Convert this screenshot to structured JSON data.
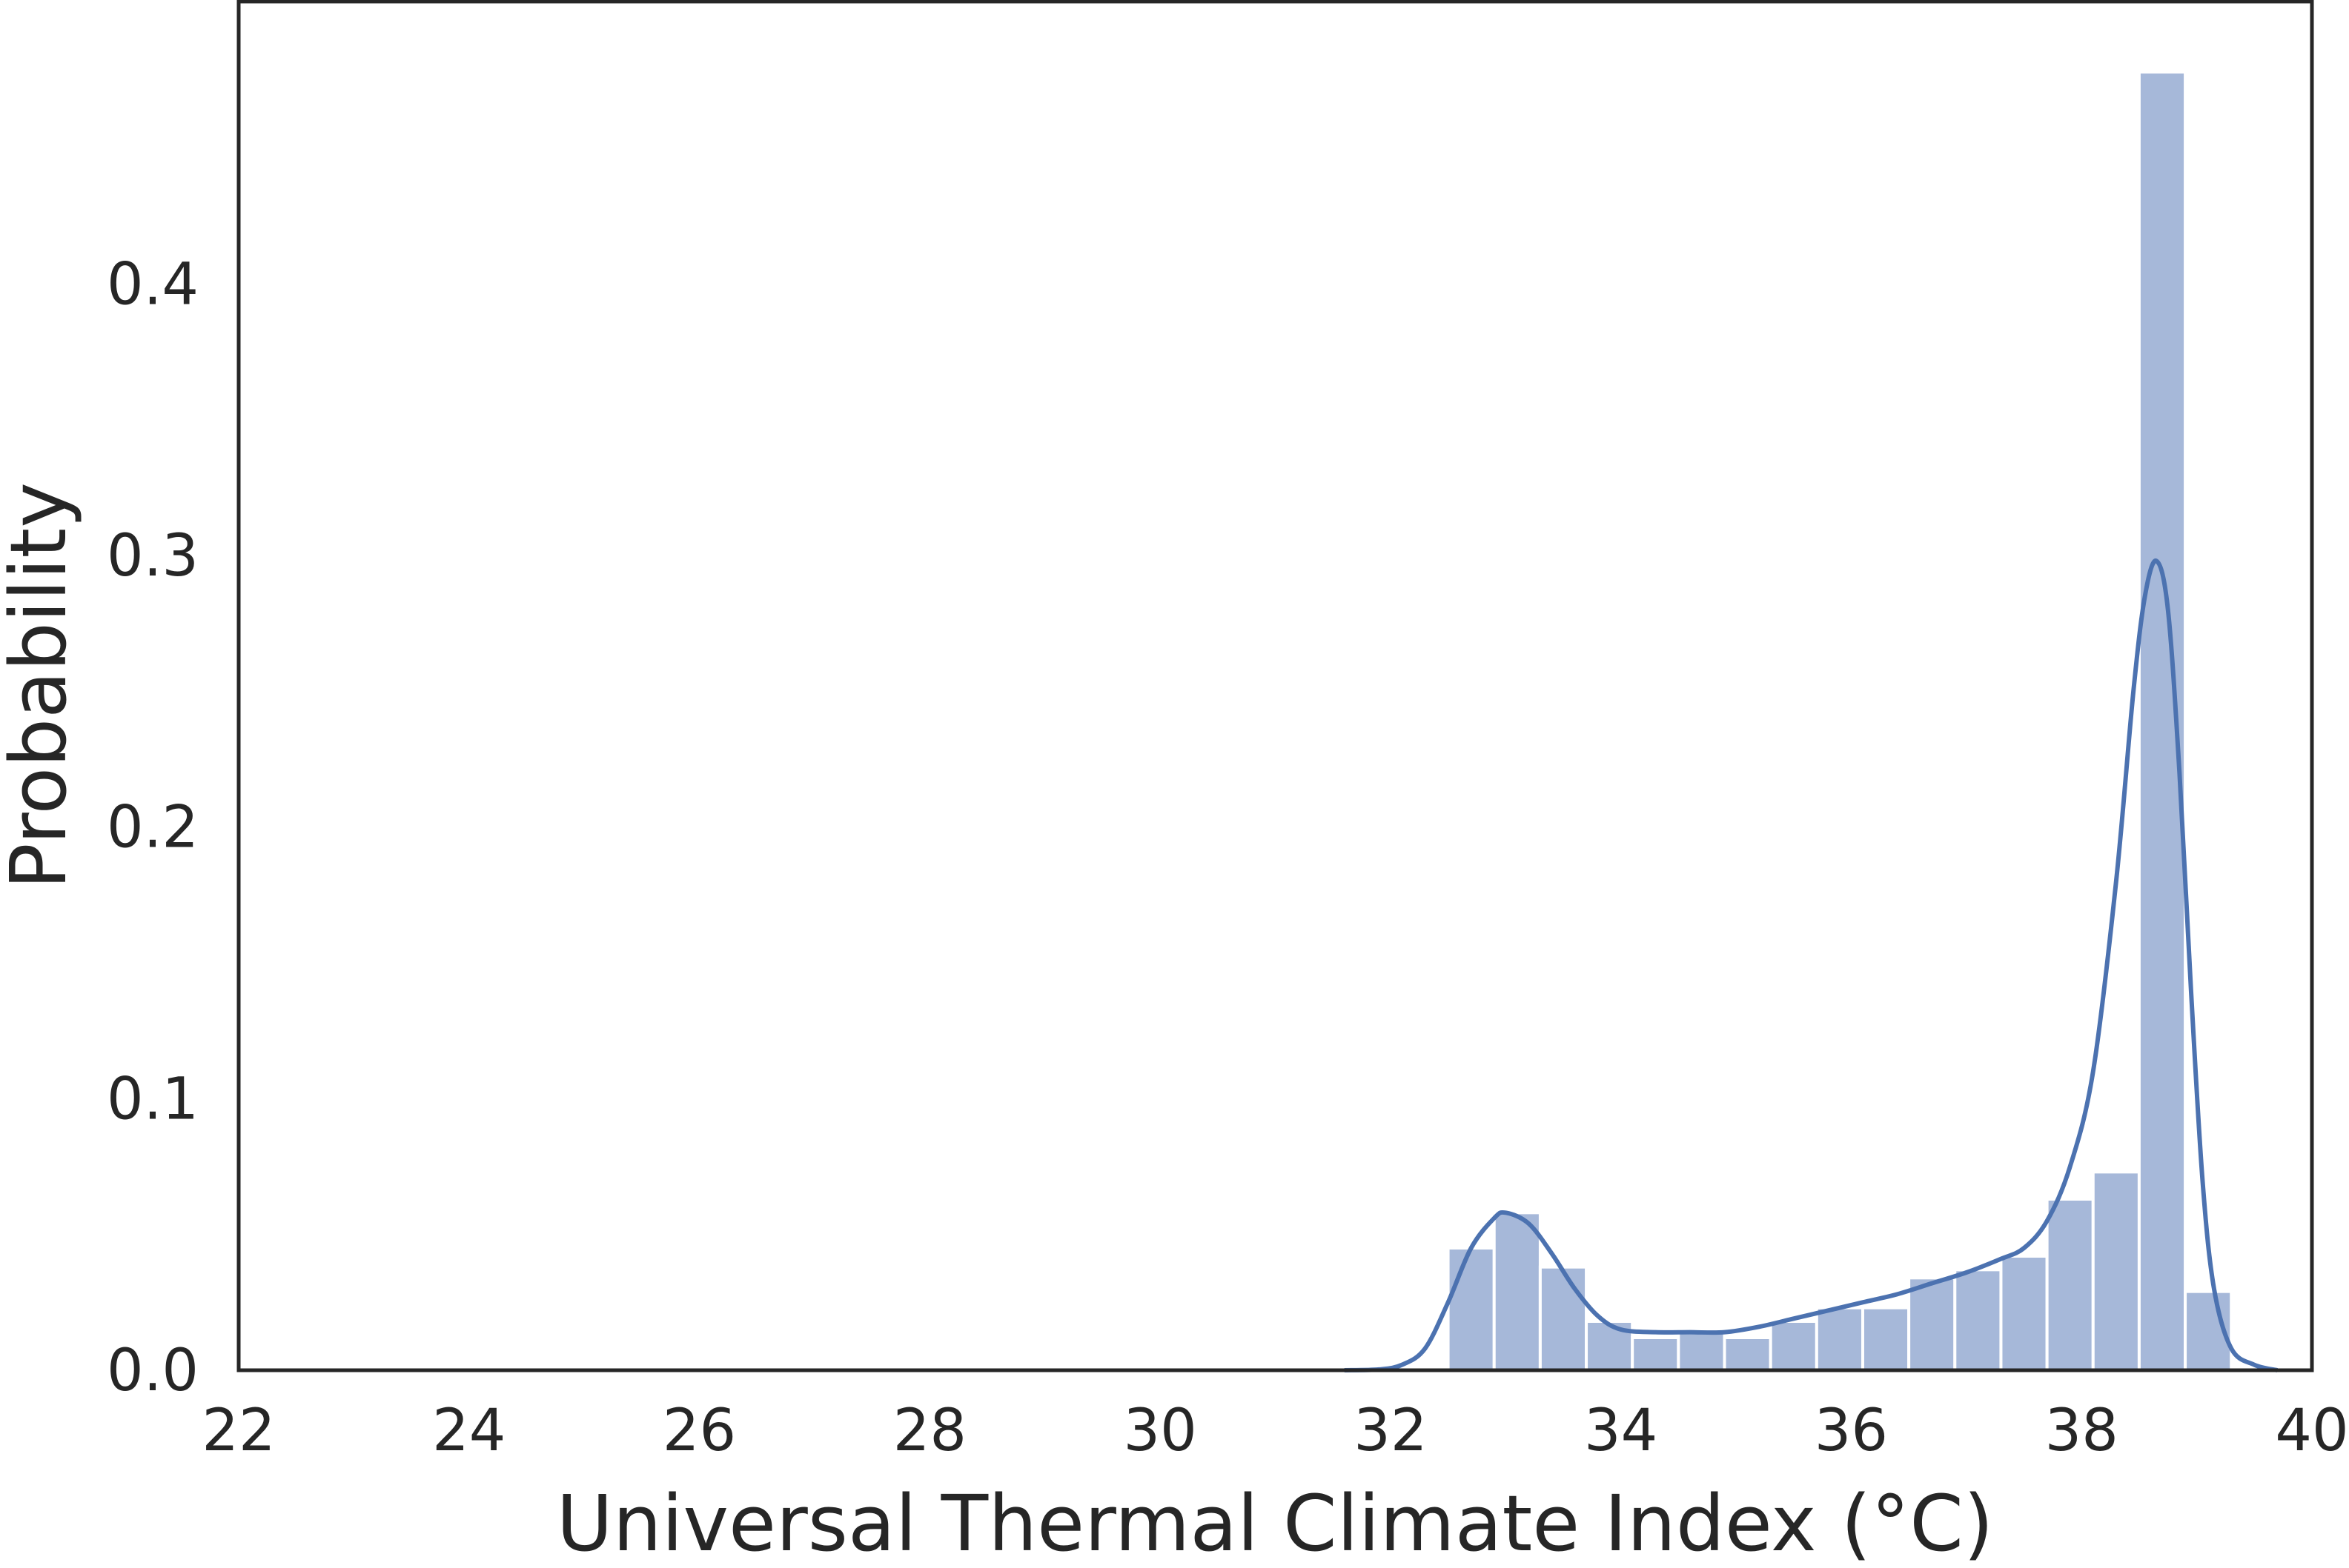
{
  "chart_data": {
    "type": "bar",
    "xlabel": "Universal Thermal Climate Index (°C)",
    "ylabel": "Probability",
    "xlim": [
      22,
      40
    ],
    "ylim": [
      0,
      0.48
    ],
    "x_ticks": [
      "22",
      "24",
      "26",
      "28",
      "30",
      "32",
      "34",
      "36",
      "38",
      "40"
    ],
    "y_ticks": [
      "0.0",
      "0.1",
      "0.2",
      "0.3",
      "0.4"
    ],
    "grid": false,
    "bar_color": "#a6b8d9",
    "kde_color": "#4c72b0",
    "bin_width": 0.4,
    "bins": [
      {
        "x0": 32.5,
        "value": 0.045
      },
      {
        "x0": 32.9,
        "value": 0.058
      },
      {
        "x0": 33.3,
        "value": 0.038
      },
      {
        "x0": 33.7,
        "value": 0.018
      },
      {
        "x0": 34.1,
        "value": 0.012
      },
      {
        "x0": 34.5,
        "value": 0.014
      },
      {
        "x0": 34.9,
        "value": 0.012
      },
      {
        "x0": 35.3,
        "value": 0.018
      },
      {
        "x0": 35.7,
        "value": 0.023
      },
      {
        "x0": 36.1,
        "value": 0.023
      },
      {
        "x0": 36.5,
        "value": 0.034
      },
      {
        "x0": 36.9,
        "value": 0.037
      },
      {
        "x0": 37.3,
        "value": 0.042
      },
      {
        "x0": 37.7,
        "value": 0.063
      },
      {
        "x0": 38.1,
        "value": 0.073
      },
      {
        "x0": 38.5,
        "value": 0.478
      },
      {
        "x0": 38.9,
        "value": 0.029
      }
    ],
    "kde": {
      "x": [
        31.6,
        31.9,
        32.1,
        32.3,
        32.5,
        32.7,
        32.9,
        33.0,
        33.2,
        33.4,
        33.6,
        33.8,
        34.0,
        34.3,
        34.6,
        34.9,
        35.2,
        35.5,
        35.8,
        36.1,
        36.4,
        36.7,
        37.0,
        37.3,
        37.5,
        37.7,
        37.9,
        38.1,
        38.3,
        38.45,
        38.55,
        38.65,
        38.75,
        38.85,
        38.95,
        39.05,
        39.15,
        39.3,
        39.5,
        39.7
      ],
      "y": [
        0.0,
        0.0003,
        0.002,
        0.008,
        0.025,
        0.045,
        0.056,
        0.058,
        0.054,
        0.043,
        0.03,
        0.02,
        0.015,
        0.014,
        0.014,
        0.014,
        0.016,
        0.019,
        0.022,
        0.025,
        0.028,
        0.032,
        0.036,
        0.041,
        0.045,
        0.055,
        0.075,
        0.11,
        0.18,
        0.25,
        0.285,
        0.298,
        0.28,
        0.22,
        0.14,
        0.07,
        0.03,
        0.008,
        0.002,
        0.0
      ]
    }
  }
}
